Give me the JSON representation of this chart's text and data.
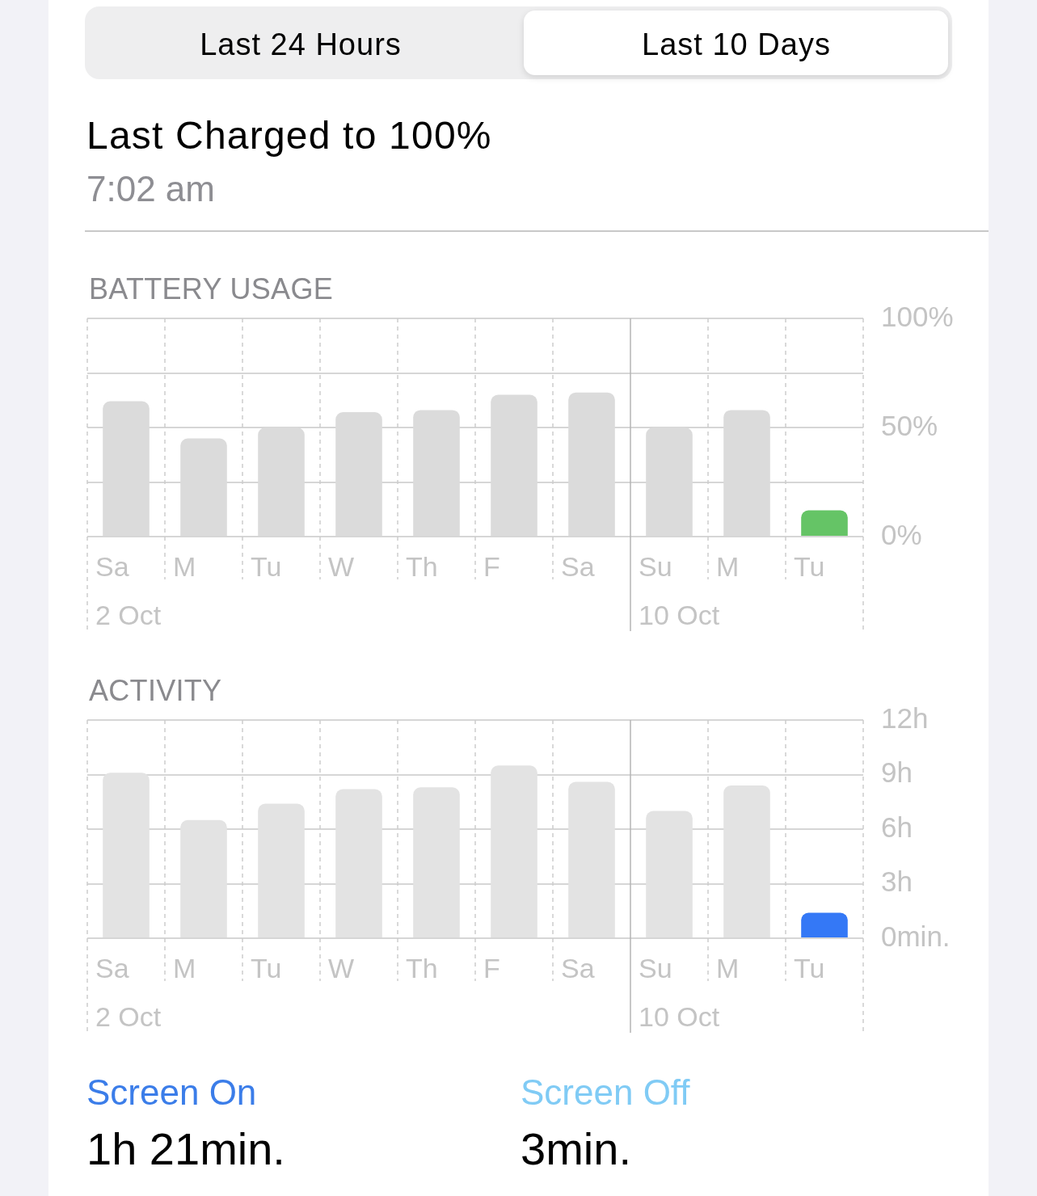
{
  "chart_data": [
    {
      "type": "bar",
      "title": "BATTERY USAGE",
      "categories": [
        "Sa",
        "M",
        "Tu",
        "W",
        "Th",
        "F",
        "Sa",
        "Su",
        "M",
        "Tu"
      ],
      "values": [
        62,
        45,
        50,
        57,
        58,
        65,
        66,
        50,
        58,
        12
      ],
      "colors": [
        "#dbdbdb",
        "#dbdbdb",
        "#dbdbdb",
        "#dbdbdb",
        "#dbdbdb",
        "#dbdbdb",
        "#dbdbdb",
        "#dbdbdb",
        "#dbdbdb",
        "#65c466"
      ],
      "ylim": [
        0,
        100
      ],
      "yticks": [
        {
          "value": 0,
          "label": "0%"
        },
        {
          "value": 25,
          "label": null
        },
        {
          "value": 50,
          "label": "50%"
        },
        {
          "value": 75,
          "label": null
        },
        {
          "value": 100,
          "label": "100%"
        }
      ],
      "grid": true,
      "ref_lines": [
        {
          "axis": "x",
          "value": "Sa",
          "label": "2 Oct",
          "color": "#cdcdcd",
          "line_style": "dashed"
        },
        {
          "axis": "x",
          "value": "Su",
          "label": "10 Oct",
          "color": "#b4b4b4"
        }
      ],
      "annotations": [
        "Last 24 Hours",
        "Last 10 Days",
        "Last Charged to 100%",
        "7:02 am"
      ]
    },
    {
      "type": "bar",
      "title": "ACTIVITY",
      "categories": [
        "Sa",
        "M",
        "Tu",
        "W",
        "Th",
        "F",
        "Sa",
        "Su",
        "M",
        "Tu"
      ],
      "values": [
        9.1,
        6.5,
        7.4,
        8.2,
        8.3,
        9.5,
        8.6,
        7,
        8.4,
        1.4
      ],
      "colors": [
        "#e3e3e3",
        "#e3e3e3",
        "#e3e3e3",
        "#e3e3e3",
        "#e3e3e3",
        "#e3e3e3",
        "#e3e3e3",
        "#e3e3e3",
        "#e3e3e3",
        "#3478f6"
      ],
      "ylim": [
        0,
        12
      ],
      "yticks": [
        {
          "value": 0,
          "label": "0min."
        },
        {
          "value": 3,
          "label": "3h"
        },
        {
          "value": 6,
          "label": "6h"
        },
        {
          "value": 9,
          "label": "9h"
        },
        {
          "value": 12,
          "label": "12h"
        }
      ],
      "grid": true,
      "ref_lines": [
        {
          "axis": "x",
          "value": "Sa",
          "label": "2 Oct",
          "color": "#cdcdcd",
          "line_style": "dashed"
        },
        {
          "axis": "x",
          "value": "Su",
          "label": "10 Oct",
          "color": "#b4b4b4"
        }
      ],
      "annotations": [
        "Screen On",
        "1h 21min.",
        "Screen Off",
        "3min."
      ]
    }
  ]
}
